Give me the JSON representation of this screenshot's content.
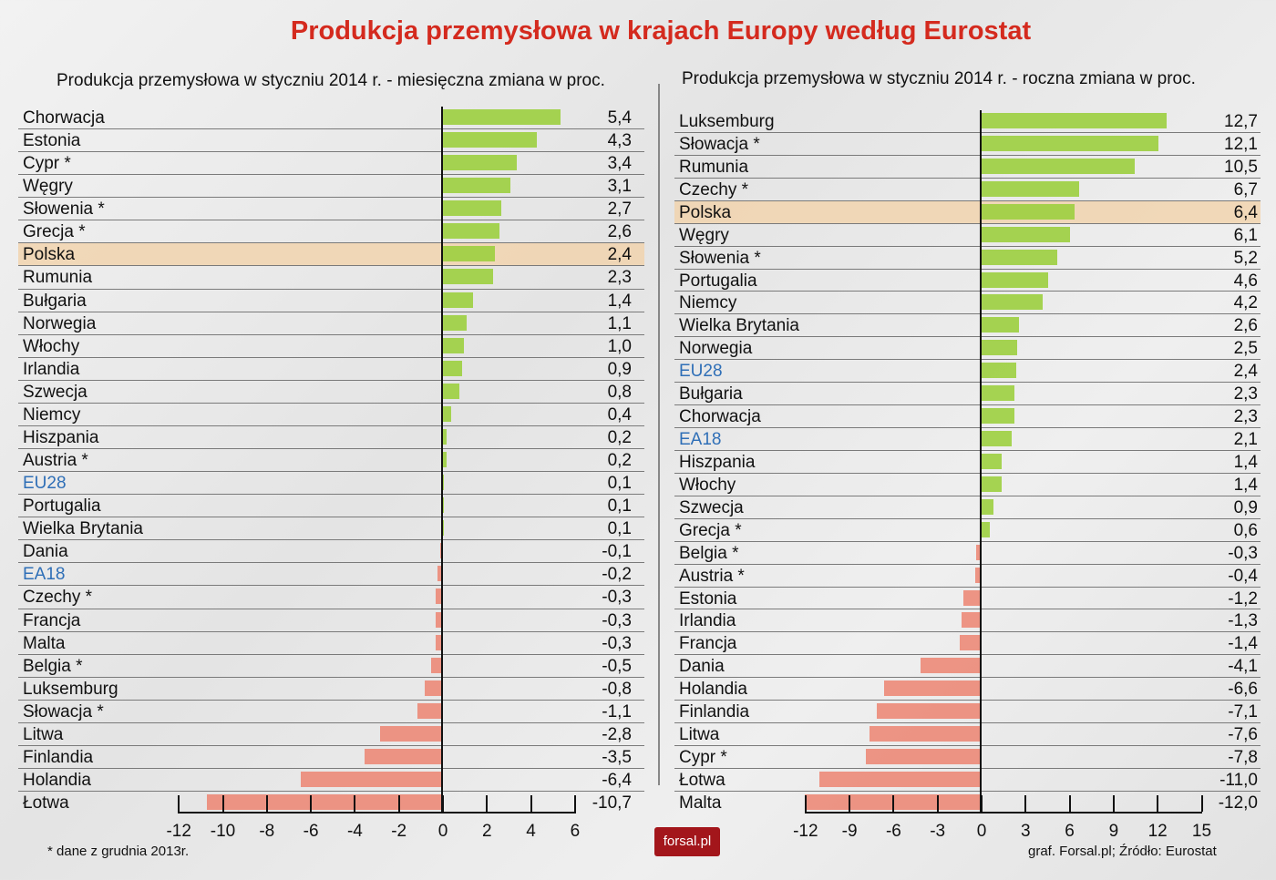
{
  "title": "Produkcja przemysłowa w krajach Europy według Eurostat",
  "footnote": "* dane z grudnia 2013r.",
  "source": "graf. Forsal.pl; Źródło: Eurostat",
  "logo": "forsal.pl",
  "colors": {
    "positive": "#9ccf3f",
    "negative": "#ec8a78",
    "highlight": "#f1d3ae",
    "aggregate_label": "#2f6fb7",
    "title": "#d42a1e"
  },
  "chart_data": [
    {
      "type": "bar",
      "orientation": "horizontal",
      "title": "Produkcja przemysłowa w styczniu 2014 r. - miesięczna zmiana w proc.",
      "xlim": [
        -12,
        6
      ],
      "ticks": [
        "-12",
        "-10",
        "-8",
        "-6",
        "-4",
        "-2",
        "0",
        "2",
        "4",
        "6"
      ],
      "highlight": "Polska",
      "categories": [
        "Chorwacja",
        "Estonia",
        "Cypr *",
        "Węgry",
        "Słowenia *",
        "Grecja *",
        "Polska",
        "Rumunia",
        "Bułgaria",
        "Norwegia",
        "Włochy",
        "Irlandia",
        "Szwecja",
        "Niemcy",
        "Hiszpania",
        "Austria *",
        "EU28",
        "Portugalia",
        "Wielka Brytania",
        "Dania",
        "EA18",
        "Czechy *",
        "Francja",
        "Malta",
        "Belgia *",
        "Luksemburg",
        "Słowacja *",
        "Litwa",
        "Finlandia",
        "Holandia",
        "Łotwa"
      ],
      "values": [
        5.4,
        4.3,
        3.4,
        3.1,
        2.7,
        2.6,
        2.4,
        2.3,
        1.4,
        1.1,
        1.0,
        0.9,
        0.8,
        0.4,
        0.2,
        0.2,
        0.1,
        0.1,
        0.1,
        -0.1,
        -0.2,
        -0.3,
        -0.3,
        -0.3,
        -0.5,
        -0.8,
        -1.1,
        -2.8,
        -3.5,
        -6.4,
        -10.7
      ],
      "value_labels": [
        "5,4",
        "4,3",
        "3,4",
        "3,1",
        "2,7",
        "2,6",
        "2,4",
        "2,3",
        "1,4",
        "1,1",
        "1,0",
        "0,9",
        "0,8",
        "0,4",
        "0,2",
        "0,2",
        "0,1",
        "0,1",
        "0,1",
        "-0,1",
        "-0,2",
        "-0,3",
        "-0,3",
        "-0,3",
        "-0,5",
        "-0,8",
        "-1,1",
        "-2,8",
        "-3,5",
        "-6,4",
        "-10,7"
      ]
    },
    {
      "type": "bar",
      "orientation": "horizontal",
      "title": "Produkcja przemysłowa w styczniu 2014 r. - roczna zmiana w proc.",
      "xlim": [
        -12,
        15
      ],
      "ticks": [
        "-12",
        "-9",
        "-6",
        "-3",
        "0",
        "3",
        "6",
        "9",
        "12",
        "15"
      ],
      "highlight": "Polska",
      "categories": [
        "Luksemburg",
        "Słowacja *",
        "Rumunia",
        "Czechy *",
        "Polska",
        "Węgry",
        "Słowenia *",
        "Portugalia",
        "Niemcy",
        "Wielka Brytania",
        "Norwegia",
        "EU28",
        "Bułgaria",
        "Chorwacja",
        "EA18",
        "Hiszpania",
        "Włochy",
        "Szwecja",
        "Grecja *",
        "Belgia *",
        "Austria *",
        "Estonia",
        "Irlandia",
        "Francja",
        "Dania",
        "Holandia",
        "Finlandia",
        "Litwa",
        "Cypr *",
        "Łotwa",
        "Malta"
      ],
      "values": [
        12.7,
        12.1,
        10.5,
        6.7,
        6.4,
        6.1,
        5.2,
        4.6,
        4.2,
        2.6,
        2.5,
        2.4,
        2.3,
        2.3,
        2.1,
        1.4,
        1.4,
        0.9,
        0.6,
        -0.3,
        -0.4,
        -1.2,
        -1.3,
        -1.4,
        -4.1,
        -6.6,
        -7.1,
        -7.6,
        -7.8,
        -11.0,
        -12.0
      ],
      "value_labels": [
        "12,7",
        "12,1",
        "10,5",
        "6,7",
        "6,4",
        "6,1",
        "5,2",
        "4,6",
        "4,2",
        "2,6",
        "2,5",
        "2,4",
        "2,3",
        "2,3",
        "2,1",
        "1,4",
        "1,4",
        "0,9",
        "0,6",
        "-0,3",
        "-0,4",
        "-1,2",
        "-1,3",
        "-1,4",
        "-4,1",
        "-6,6",
        "-7,1",
        "-7,6",
        "-7,8",
        "-11,0",
        "-12,0"
      ]
    }
  ]
}
